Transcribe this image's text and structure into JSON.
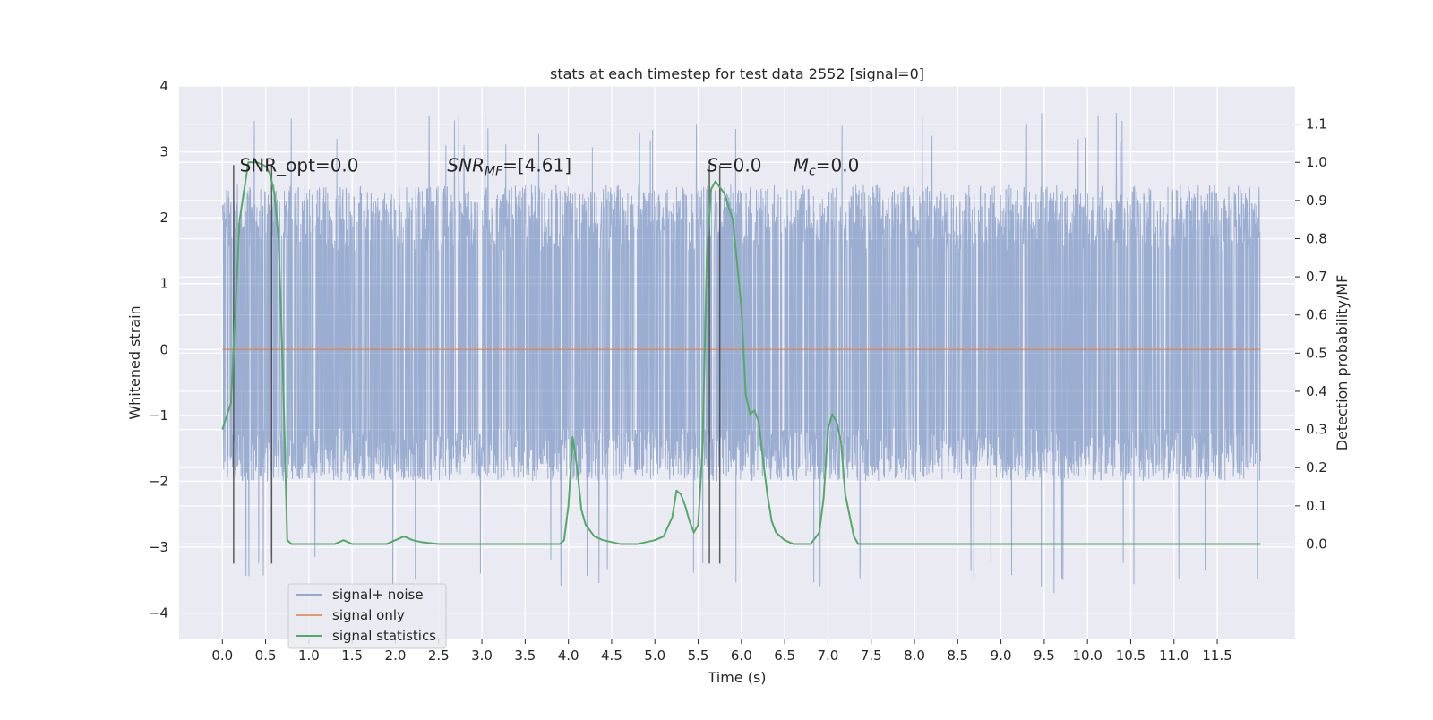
{
  "chart_data": {
    "type": "line",
    "title": "stats at each timestep for test data 2552 [signal=0]",
    "xlabel": "Time (s)",
    "ylabel": "Whitened strain",
    "y2label": "Detection probability/MF",
    "xlim": [
      -0.5,
      12.4
    ],
    "ylim": [
      -4.4,
      4.0
    ],
    "y2lim": [
      -0.25,
      1.2
    ],
    "xticks": [
      0.0,
      0.5,
      1.0,
      1.5,
      2.0,
      2.5,
      3.0,
      3.5,
      4.0,
      4.5,
      5.0,
      5.5,
      6.0,
      6.5,
      7.0,
      7.5,
      8.0,
      8.5,
      9.0,
      9.5,
      10.0,
      10.5,
      11.0,
      11.5
    ],
    "xtick_labels": [
      "0.0",
      "0.5",
      "1.0",
      "1.5",
      "2.0",
      "2.5",
      "3.0",
      "3.5",
      "4.0",
      "4.5",
      "5.0",
      "5.5",
      "6.0",
      "6.5",
      "7.0",
      "7.5",
      "8.0",
      "8.5",
      "9.0",
      "9.5",
      "10.0",
      "10.5",
      "11.0",
      "11.5"
    ],
    "yticks": [
      -4,
      -3,
      -2,
      -1,
      0,
      1,
      2,
      3,
      4
    ],
    "ytick_labels": [
      "−4",
      "−3",
      "−2",
      "−1",
      "0",
      "1",
      "2",
      "3",
      "4"
    ],
    "y2ticks": [
      0.0,
      0.1,
      0.2,
      0.3,
      0.4,
      0.5,
      0.6,
      0.7,
      0.8,
      0.9,
      1.0,
      1.1
    ],
    "y2tick_labels": [
      "0.0",
      "0.1",
      "0.2",
      "0.3",
      "0.4",
      "0.5",
      "0.6",
      "0.7",
      "0.8",
      "0.9",
      "1.0",
      "1.1"
    ],
    "grid": true,
    "legend_position": "lower-left",
    "series": [
      {
        "name": "signal+ noise",
        "color": "#4c72b0",
        "axis": "left",
        "kind": "noise",
        "x_range": [
          0.0,
          12.0
        ],
        "envelope": [
          -2.0,
          2.5
        ],
        "extremes": [
          -3.7,
          3.6
        ]
      },
      {
        "name": "signal only",
        "color": "#dd8452",
        "axis": "left",
        "x": [
          0.0,
          12.0
        ],
        "y": [
          0.0,
          0.0
        ]
      },
      {
        "name": "signal statistics",
        "color": "#55a868",
        "axis": "right",
        "x": [
          0.0,
          0.1,
          0.2,
          0.3,
          0.4,
          0.5,
          0.55,
          0.6,
          0.65,
          0.7,
          0.75,
          0.8,
          0.9,
          1.0,
          1.2,
          1.3,
          1.4,
          1.5,
          1.7,
          1.9,
          2.0,
          2.1,
          2.2,
          2.3,
          2.5,
          3.0,
          3.5,
          3.8,
          3.9,
          3.95,
          4.0,
          4.05,
          4.1,
          4.15,
          4.2,
          4.3,
          4.4,
          4.6,
          4.8,
          5.0,
          5.1,
          5.2,
          5.25,
          5.3,
          5.35,
          5.4,
          5.45,
          5.5,
          5.55,
          5.6,
          5.65,
          5.7,
          5.8,
          5.9,
          6.0,
          6.05,
          6.1,
          6.15,
          6.2,
          6.25,
          6.3,
          6.35,
          6.4,
          6.5,
          6.6,
          6.8,
          6.9,
          6.95,
          7.0,
          7.05,
          7.1,
          7.15,
          7.2,
          7.3,
          7.35,
          7.4,
          7.5,
          8.0,
          8.5,
          9.0,
          9.5,
          10.0,
          10.5,
          11.0,
          11.5,
          12.0
        ],
        "y": [
          0.3,
          0.37,
          0.85,
          1.0,
          1.0,
          0.99,
          0.97,
          0.92,
          0.8,
          0.45,
          0.01,
          0.0,
          0.0,
          0.0,
          0.0,
          0.0,
          0.01,
          0.0,
          0.0,
          0.0,
          0.01,
          0.02,
          0.01,
          0.005,
          0.0,
          0.0,
          0.0,
          0.0,
          0.0,
          0.01,
          0.1,
          0.28,
          0.2,
          0.09,
          0.05,
          0.02,
          0.01,
          0.0,
          0.0,
          0.01,
          0.02,
          0.07,
          0.14,
          0.13,
          0.1,
          0.06,
          0.03,
          0.05,
          0.25,
          0.75,
          0.93,
          0.95,
          0.92,
          0.85,
          0.62,
          0.39,
          0.34,
          0.35,
          0.32,
          0.22,
          0.13,
          0.06,
          0.03,
          0.01,
          0.0,
          0.0,
          0.03,
          0.12,
          0.3,
          0.34,
          0.32,
          0.27,
          0.13,
          0.02,
          0.0,
          0.0,
          0.0,
          0.0,
          0.0,
          0.0,
          0.0,
          0.0,
          0.0,
          0.0,
          0.0,
          0.0
        ]
      }
    ],
    "vertical_lines": [
      0.13,
      0.57,
      5.63,
      5.75
    ],
    "vlines_range": [
      -3.25,
      2.8
    ],
    "annotations": [
      {
        "text": "SNR_opt=0.0",
        "x": 0.2,
        "y": 2.7
      },
      {
        "text": "SNR_MF=[4.61]",
        "x": 2.6,
        "y": 2.7
      },
      {
        "text": "S=0.0",
        "x": 5.6,
        "y": 2.7
      },
      {
        "text": "M_c=0.0",
        "x": 6.6,
        "y": 2.7
      }
    ]
  }
}
